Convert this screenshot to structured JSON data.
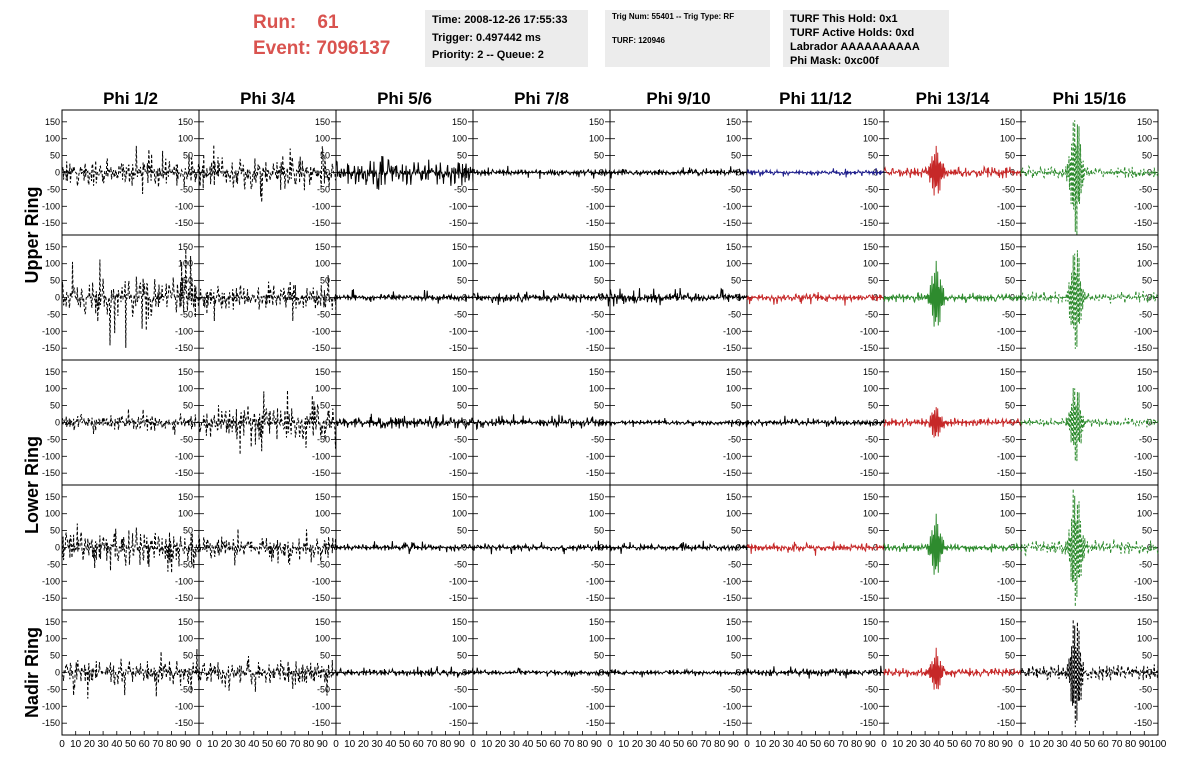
{
  "header": {
    "run_label": "Run:",
    "run_value": "61",
    "event_label": "Event:",
    "event_value": "7096137"
  },
  "info1": {
    "time": "Time: 2008-12-26 17:55:33",
    "trigger": "Trigger: 0.497442 ms",
    "priority": "Priority: 2 -- Queue: 2"
  },
  "info2": {
    "trig": "Trig Num: 55401 -- Trig Type: RF",
    "turf": "TURF: 120946"
  },
  "info3": {
    "hold": "TURF This Hold: 0x1",
    "active": "TURF Active Holds: 0xd",
    "labrador": "Labrador AAAAAAAAAA",
    "phimask": "Phi Mask: 0xc00f"
  },
  "chart_data": {
    "type": "line",
    "columns": [
      "Phi 1/2",
      "Phi 3/4",
      "Phi 5/6",
      "Phi 7/8",
      "Phi 9/10",
      "Phi 11/12",
      "Phi 13/14",
      "Phi 15/16"
    ],
    "rows": [
      "Upper Ring",
      "Lower Ring",
      "Nadir Ring"
    ],
    "x_ticks": [
      0,
      10,
      20,
      30,
      40,
      50,
      60,
      70,
      80,
      90,
      100
    ],
    "y_ticks": [
      -150,
      -100,
      -50,
      0,
      50,
      100,
      150
    ],
    "xlim": [
      0,
      100
    ],
    "ylim": [
      -185,
      185
    ],
    "panels": [
      [
        {
          "color": "#000000",
          "dashed": true,
          "amp": 45,
          "peak": 80,
          "pulse_at": 0
        },
        {
          "color": "#000000",
          "dashed": true,
          "amp": 55,
          "peak": 90,
          "pulse_at": 0
        },
        {
          "color": "#000000",
          "dashed": false,
          "amp": 40,
          "peak": 55,
          "pulse_at": 0
        },
        {
          "color": "#000000",
          "dashed": false,
          "amp": 10,
          "peak": 20,
          "pulse_at": 0
        },
        {
          "color": "#000000",
          "dashed": false,
          "amp": 10,
          "peak": 20,
          "pulse_at": 0
        },
        {
          "color": "#1f1f8c",
          "dashed": false,
          "amp": 8,
          "peak": 15,
          "pulse_at": 0
        },
        {
          "color": "#c62828",
          "dashed": false,
          "amp": 18,
          "peak": 75,
          "pulse_at": 38
        },
        {
          "color": "#2e8b2e",
          "dashed": true,
          "amp": 20,
          "peak": 185,
          "pulse_at": 40
        }
      ],
      [
        {
          "color": "#000000",
          "dashed": true,
          "amp": 60,
          "peak": 150,
          "pulse_at": 0
        },
        {
          "color": "#000000",
          "dashed": true,
          "amp": 40,
          "peak": 70,
          "pulse_at": 0
        },
        {
          "color": "#000000",
          "dashed": false,
          "amp": 10,
          "peak": 25,
          "pulse_at": 0
        },
        {
          "color": "#000000",
          "dashed": false,
          "amp": 15,
          "peak": 30,
          "pulse_at": 0
        },
        {
          "color": "#000000",
          "dashed": false,
          "amp": 15,
          "peak": 30,
          "pulse_at": 0
        },
        {
          "color": "#c62828",
          "dashed": false,
          "amp": 12,
          "peak": 25,
          "pulse_at": 0
        },
        {
          "color": "#2e8b2e",
          "dashed": false,
          "amp": 15,
          "peak": 100,
          "pulse_at": 38
        },
        {
          "color": "#2e8b2e",
          "dashed": true,
          "amp": 20,
          "peak": 160,
          "pulse_at": 40
        }
      ],
      [
        {
          "color": "#000000",
          "dashed": true,
          "amp": 25,
          "peak": 40,
          "pulse_at": 0
        },
        {
          "color": "#000000",
          "dashed": true,
          "amp": 55,
          "peak": 100,
          "pulse_at": 0
        },
        {
          "color": "#000000",
          "dashed": false,
          "amp": 20,
          "peak": 30,
          "pulse_at": 0
        },
        {
          "color": "#000000",
          "dashed": false,
          "amp": 12,
          "peak": 25,
          "pulse_at": 0
        },
        {
          "color": "#000000",
          "dashed": false,
          "amp": 8,
          "peak": 15,
          "pulse_at": 0
        },
        {
          "color": "#000000",
          "dashed": false,
          "amp": 10,
          "peak": 20,
          "pulse_at": 0
        },
        {
          "color": "#c62828",
          "dashed": false,
          "amp": 15,
          "peak": 50,
          "pulse_at": 38
        },
        {
          "color": "#2e8b2e",
          "dashed": true,
          "amp": 15,
          "peak": 120,
          "pulse_at": 40
        }
      ],
      [
        {
          "color": "#000000",
          "dashed": true,
          "amp": 55,
          "peak": 80,
          "pulse_at": 0
        },
        {
          "color": "#000000",
          "dashed": true,
          "amp": 35,
          "peak": 55,
          "pulse_at": 0
        },
        {
          "color": "#000000",
          "dashed": false,
          "amp": 10,
          "peak": 20,
          "pulse_at": 0
        },
        {
          "color": "#000000",
          "dashed": false,
          "amp": 10,
          "peak": 20,
          "pulse_at": 0
        },
        {
          "color": "#000000",
          "dashed": false,
          "amp": 10,
          "peak": 20,
          "pulse_at": 0
        },
        {
          "color": "#c62828",
          "dashed": false,
          "amp": 12,
          "peak": 25,
          "pulse_at": 0
        },
        {
          "color": "#2e8b2e",
          "dashed": false,
          "amp": 15,
          "peak": 90,
          "pulse_at": 38
        },
        {
          "color": "#2e8b2e",
          "dashed": true,
          "amp": 25,
          "peak": 185,
          "pulse_at": 40
        }
      ],
      [
        {
          "color": "#000000",
          "dashed": true,
          "amp": 40,
          "peak": 80,
          "pulse_at": 0
        },
        {
          "color": "#000000",
          "dashed": true,
          "amp": 40,
          "peak": 70,
          "pulse_at": 0
        },
        {
          "color": "#000000",
          "dashed": false,
          "amp": 12,
          "peak": 20,
          "pulse_at": 0
        },
        {
          "color": "#000000",
          "dashed": false,
          "amp": 8,
          "peak": 15,
          "pulse_at": 0
        },
        {
          "color": "#000000",
          "dashed": false,
          "amp": 8,
          "peak": 15,
          "pulse_at": 0
        },
        {
          "color": "#000000",
          "dashed": false,
          "amp": 12,
          "peak": 20,
          "pulse_at": 0
        },
        {
          "color": "#c62828",
          "dashed": false,
          "amp": 15,
          "peak": 60,
          "pulse_at": 38
        },
        {
          "color": "#000000",
          "dashed": true,
          "amp": 25,
          "peak": 170,
          "pulse_at": 40
        }
      ]
    ]
  }
}
